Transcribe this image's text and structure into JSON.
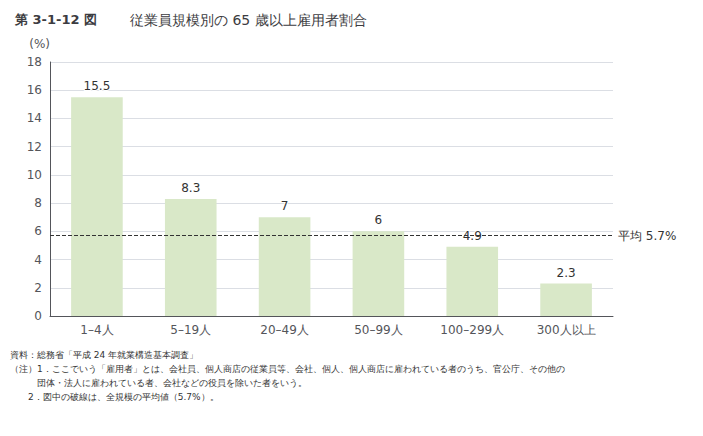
{
  "chart_data": {
    "type": "bar",
    "title": "従業員規模別の 65 歳以上雇用者割合",
    "annotations": [
      "第 3-1-12 図"
    ],
    "categories": [
      "1–4人",
      "5–19人",
      "20–49人",
      "50–99人",
      "100–299人",
      "300人以上"
    ],
    "values": [
      15.5,
      8.3,
      7.0,
      6.0,
      4.9,
      2.3
    ],
    "color": "#d9e8c8",
    "ylabel": "(%)",
    "ylim": [
      0,
      18
    ],
    "yticks": [
      0,
      2,
      4,
      6,
      8,
      10,
      12,
      14,
      16,
      18
    ],
    "grid": true,
    "data_labels": true,
    "average_line": {
      "value": 5.7,
      "label": "平均 5.7%",
      "line_style": "dashed"
    },
    "notes": [
      "資料：総務省「平成 24 年就業構造基本調査」",
      "（注）1．ここでいう「雇用者」とは、会社員、個人商店の従業員等、会社、個人、個人商店に雇われている者のうち、官公庁、その他の",
      "　　　団体・法人に雇われている者、会社などの役員を除いた者をいう。",
      "　　2．図中の破線は、全規模の平均値（5.7%）。"
    ]
  }
}
